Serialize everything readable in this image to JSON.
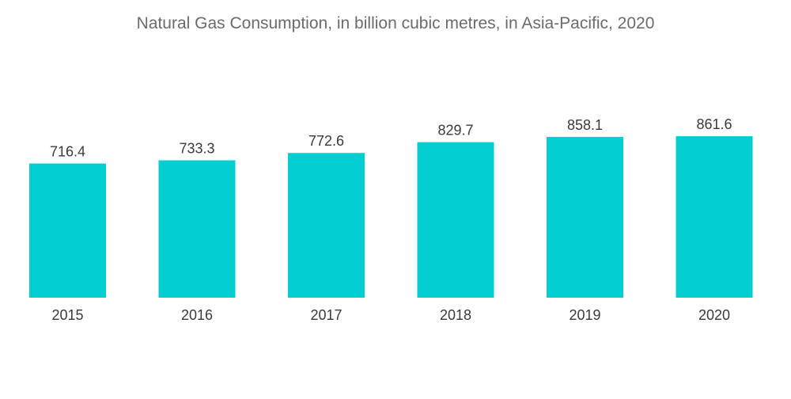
{
  "chart_data": {
    "type": "bar",
    "title": "Natural Gas Consumption, in billion cubic metres, in Asia-Pacific, 2020",
    "xlabel": "",
    "ylabel": "",
    "categories": [
      "2015",
      "2016",
      "2017",
      "2018",
      "2019",
      "2020"
    ],
    "values": [
      716.4,
      733.3,
      772.6,
      829.7,
      858.1,
      861.6
    ],
    "value_labels": [
      "716.4",
      "733.3",
      "772.6",
      "829.7",
      "858.1",
      "861.6"
    ],
    "ylim": [
      0,
      862
    ],
    "grid": false,
    "legend": "none",
    "bar_color": "#00CED1"
  }
}
